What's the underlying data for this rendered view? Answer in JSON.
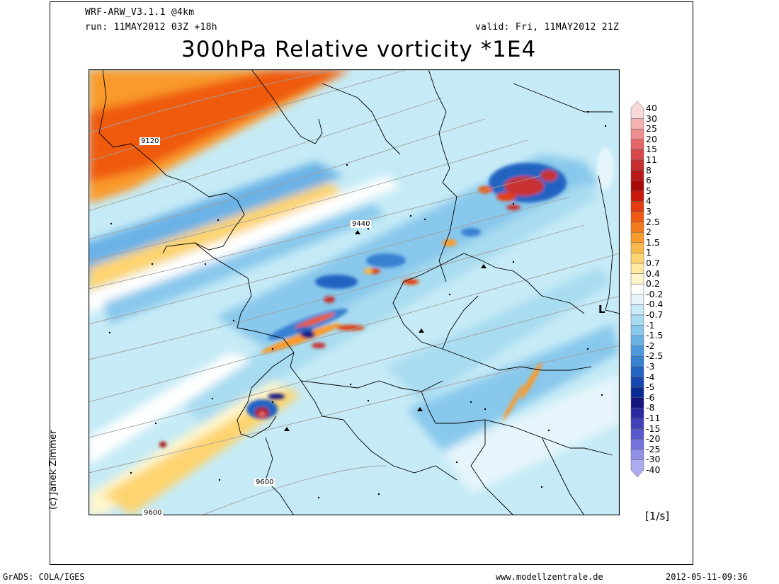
{
  "header": {
    "model": "WRF-ARW_V3.1.1 @4km",
    "run": "run: 11MAY2012 03Z +18h",
    "valid": "valid: Fri, 11MAY2012 21Z",
    "title": "300hPa Relative vorticity *1E4"
  },
  "credit": "(c) Janek Zimmer",
  "units": "[1/s]",
  "footer": {
    "left": "GrADS: COLA/IGES",
    "center": "www.modellzentrale.de",
    "right": "2012-05-11-09:36"
  },
  "contour_labels": [
    "9120",
    "9440",
    "9600",
    "9600"
  ],
  "map_symbols": {
    "low": "L"
  },
  "legend": {
    "levels": [
      "40",
      "30",
      "25",
      "20",
      "15",
      "11",
      "8",
      "6",
      "5",
      "4",
      "3",
      "2.5",
      "2",
      "1.5",
      "1",
      "0.7",
      "0.4",
      "0.2",
      "-0.2",
      "-0.4",
      "-0.7",
      "-1",
      "-1.5",
      "-2",
      "-2.5",
      "-3",
      "-4",
      "-5",
      "-6",
      "-8",
      "-11",
      "-15",
      "-20",
      "-25",
      "-30",
      "-40"
    ],
    "colors": [
      "#fbd8d8",
      "#f5b2b2",
      "#ef8e8e",
      "#e56666",
      "#d84848",
      "#c83030",
      "#b81818",
      "#a80808",
      "#c81a0a",
      "#e23c10",
      "#f05a10",
      "#f57a1c",
      "#f99a2a",
      "#fbb84a",
      "#fdd470",
      "#feeaa0",
      "#fff6cc",
      "#ffffff",
      "#e6f5fb",
      "#c6ebf6",
      "#a8dcf0",
      "#88c8ec",
      "#6ab2e6",
      "#4e98de",
      "#3880d2",
      "#2464c2",
      "#1448b0",
      "#0a2a96",
      "#141480",
      "#2a2aa0",
      "#4040b8",
      "#5858cc",
      "#7474dc",
      "#9090e8",
      "#aeaaf2"
    ]
  }
}
